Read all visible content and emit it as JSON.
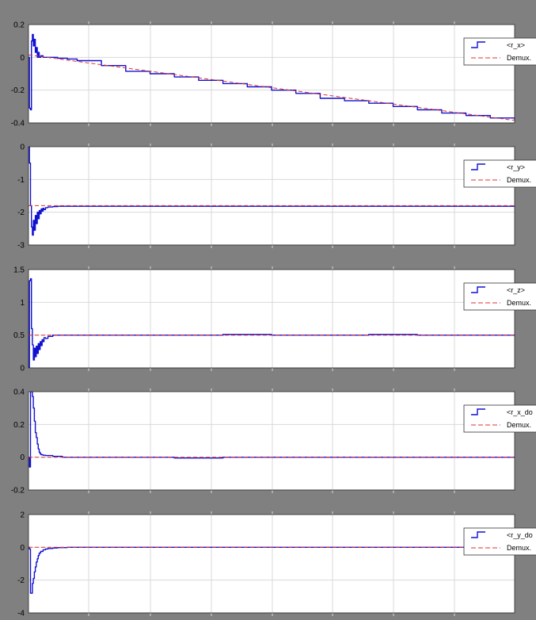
{
  "colors": {
    "background": "#808080",
    "axes_face": "#ffffff",
    "grid": "#d9d9d9",
    "signal": "#1010d0",
    "reference": "#e03030",
    "axis_text": "#000000"
  },
  "chart_data": [
    {
      "type": "line",
      "name": "r_x",
      "ylim": [
        -0.4,
        0.2
      ],
      "yticks": [
        -0.4,
        -0.2,
        0,
        0.2
      ],
      "ytick_labels": [
        "-0.4",
        "-0.2",
        "0",
        "0.2"
      ],
      "xlim": [
        0,
        10
      ],
      "grid": true,
      "legend_position": "right",
      "legend": [
        "<r_x>",
        "Demux."
      ],
      "series": [
        {
          "name": "<r_x>",
          "style": "step",
          "x": [
            0,
            0.02,
            0.04,
            0.06,
            0.08,
            0.1,
            0.12,
            0.14,
            0.16,
            0.18,
            0.2,
            0.22,
            0.25,
            0.3,
            0.4,
            0.6,
            0.8,
            1,
            1.5,
            2,
            2.5,
            3,
            3.5,
            4,
            4.5,
            5,
            5.5,
            6,
            6.5,
            7,
            7.5,
            8,
            8.5,
            9,
            9.5,
            10
          ],
          "y": [
            0,
            -0.31,
            -0.32,
            0.1,
            0.14,
            0.07,
            0.11,
            0.03,
            0.06,
            0.0,
            0.03,
            0.0,
            0.01,
            0.0,
            0.0,
            -0.005,
            -0.01,
            -0.02,
            -0.05,
            -0.085,
            -0.1,
            -0.12,
            -0.14,
            -0.16,
            -0.18,
            -0.2,
            -0.22,
            -0.25,
            -0.265,
            -0.28,
            -0.3,
            -0.32,
            -0.34,
            -0.355,
            -0.37,
            -0.38
          ]
        },
        {
          "name": "Demux.",
          "style": "dashed",
          "x": [
            0,
            10
          ],
          "y": [
            0.015,
            -0.385
          ]
        }
      ]
    },
    {
      "type": "line",
      "name": "r_y",
      "ylim": [
        -3,
        0
      ],
      "yticks": [
        -3,
        -2,
        -1,
        0
      ],
      "ytick_labels": [
        "-3",
        "-2",
        "-1",
        "0"
      ],
      "xlim": [
        0,
        10
      ],
      "grid": true,
      "legend_position": "right",
      "legend": [
        "<r_y>",
        "Demux."
      ],
      "series": [
        {
          "name": "<r_y>",
          "style": "step",
          "x": [
            0,
            0.02,
            0.04,
            0.06,
            0.08,
            0.1,
            0.12,
            0.14,
            0.16,
            0.18,
            0.2,
            0.22,
            0.24,
            0.26,
            0.28,
            0.3,
            0.32,
            0.35,
            0.4,
            0.5,
            0.6,
            0.8,
            1,
            2,
            3,
            4,
            5,
            6,
            7,
            8,
            9,
            10
          ],
          "y": [
            0,
            -0.5,
            -1.8,
            -2.45,
            -2.7,
            -2.25,
            -2.55,
            -2.1,
            -2.35,
            -2.0,
            -2.2,
            -1.95,
            -2.05,
            -1.9,
            -1.97,
            -1.88,
            -1.92,
            -1.86,
            -1.84,
            -1.83,
            -1.82,
            -1.82,
            -1.82,
            -1.82,
            -1.82,
            -1.82,
            -1.82,
            -1.82,
            -1.82,
            -1.82,
            -1.82,
            -1.82
          ]
        },
        {
          "name": "Demux.",
          "style": "dashed",
          "x": [
            0,
            10
          ],
          "y": [
            -1.8,
            -1.8
          ]
        }
      ]
    },
    {
      "type": "line",
      "name": "r_z",
      "ylim": [
        0,
        1.5
      ],
      "yticks": [
        0,
        0.5,
        1,
        1.5
      ],
      "ytick_labels": [
        "0",
        "0.5",
        "1",
        "1.5"
      ],
      "xlim": [
        0,
        10
      ],
      "grid": true,
      "legend_position": "right",
      "legend": [
        "<r_z>",
        "Demux."
      ],
      "series": [
        {
          "name": "<r_z>",
          "style": "step",
          "x": [
            0,
            0.02,
            0.04,
            0.06,
            0.08,
            0.1,
            0.12,
            0.14,
            0.16,
            0.18,
            0.2,
            0.22,
            0.24,
            0.26,
            0.28,
            0.3,
            0.32,
            0.35,
            0.4,
            0.5,
            0.7,
            1,
            2,
            3,
            4,
            5,
            6,
            7,
            8,
            9,
            10
          ],
          "y": [
            0,
            1.33,
            1.36,
            0.6,
            0.35,
            0.12,
            0.3,
            0.17,
            0.33,
            0.22,
            0.37,
            0.28,
            0.4,
            0.34,
            0.43,
            0.4,
            0.46,
            0.45,
            0.48,
            0.5,
            0.5,
            0.5,
            0.5,
            0.5,
            0.51,
            0.5,
            0.5,
            0.51,
            0.5,
            0.5,
            0.5
          ]
        },
        {
          "name": "Demux.",
          "style": "dashed",
          "x": [
            0,
            10
          ],
          "y": [
            0.5,
            0.5
          ]
        }
      ]
    },
    {
      "type": "line",
      "name": "r_x_dot",
      "ylim": [
        -0.2,
        0.4
      ],
      "yticks": [
        -0.2,
        0,
        0.2,
        0.4
      ],
      "ytick_labels": [
        "-0.2",
        "0",
        "0.2",
        "0.4"
      ],
      "xlim": [
        0,
        10
      ],
      "grid": true,
      "legend_position": "right",
      "legend": [
        "<r_x_do",
        "Demux."
      ],
      "series": [
        {
          "name": "<r_x_do",
          "style": "step",
          "x": [
            0,
            0.02,
            0.04,
            0.06,
            0.08,
            0.1,
            0.12,
            0.14,
            0.16,
            0.18,
            0.2,
            0.22,
            0.24,
            0.26,
            0.3,
            0.35,
            0.4,
            0.5,
            0.7,
            1,
            2,
            3,
            4,
            5,
            6,
            7,
            8,
            9,
            10
          ],
          "y": [
            0,
            -0.06,
            0.4,
            0.4,
            0.37,
            0.3,
            0.22,
            0.15,
            0.12,
            0.08,
            0.05,
            0.03,
            0.02,
            0.015,
            0.012,
            0.01,
            0.01,
            0.005,
            0.0,
            0.0,
            0.0,
            -0.005,
            0.0,
            0.0,
            0.0,
            0.0,
            0.0,
            0.0,
            0.0
          ]
        },
        {
          "name": "Demux.",
          "style": "dashed",
          "x": [
            0,
            10
          ],
          "y": [
            0,
            0
          ]
        }
      ]
    },
    {
      "type": "line",
      "name": "r_y_dot",
      "ylim": [
        -4,
        2
      ],
      "yticks": [
        -4,
        -2,
        0,
        2
      ],
      "ytick_labels": [
        "-4",
        "-2",
        "0",
        "2"
      ],
      "xlim": [
        0,
        10
      ],
      "grid": true,
      "legend_position": "right",
      "legend": [
        "<r_y_do",
        "Demux."
      ],
      "series": [
        {
          "name": "<r_y_do",
          "style": "step",
          "x": [
            0,
            0.02,
            0.04,
            0.06,
            0.08,
            0.1,
            0.12,
            0.14,
            0.16,
            0.18,
            0.2,
            0.22,
            0.25,
            0.3,
            0.35,
            0.4,
            0.5,
            0.6,
            0.8,
            1,
            2,
            3,
            4,
            5,
            6,
            7,
            8,
            9,
            10
          ],
          "y": [
            0,
            -0.1,
            -2.8,
            -2.8,
            -2.2,
            -1.9,
            -1.5,
            -1.2,
            -0.9,
            -0.7,
            -0.5,
            -0.35,
            -0.25,
            -0.15,
            -0.1,
            -0.07,
            -0.04,
            -0.02,
            0.0,
            0.0,
            0.0,
            0.0,
            0.0,
            0.0,
            0.0,
            0.0,
            0.0,
            0.0,
            0.0
          ]
        },
        {
          "name": "Demux.",
          "style": "dashed",
          "x": [
            0,
            10
          ],
          "y": [
            0,
            0
          ]
        }
      ]
    }
  ]
}
